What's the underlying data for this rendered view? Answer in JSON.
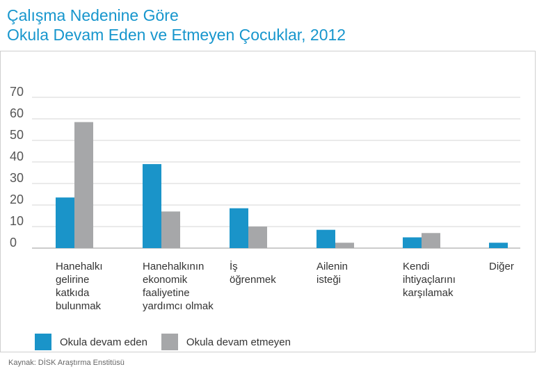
{
  "chart_data": {
    "type": "bar",
    "title": "Çalışma Nedenine Göre",
    "subtitle": "Okula Devam Eden ve Etmeyen Çocuklar, 2012",
    "categories": [
      [
        "Hanehalkı",
        "gelirine",
        "katkıda",
        "bulunmak"
      ],
      [
        "Hanehalkının",
        "ekonomik",
        "faaliyetine",
        "yardımcı olmak"
      ],
      [
        "İş",
        "öğrenmek"
      ],
      [
        "Ailenin",
        "isteği"
      ],
      [
        "Kendi",
        "ihtiyaçlarını",
        "karşılamak"
      ],
      [
        "Diğer"
      ]
    ],
    "series": [
      {
        "name": "Okula devam eden",
        "color": "#1a94c9",
        "values": [
          23.5,
          39,
          18.5,
          8.5,
          5,
          2.5
        ]
      },
      {
        "name": "Okula devam etmeyen",
        "color": "#a6a7a9",
        "values": [
          58.5,
          17,
          10,
          2.5,
          7,
          null
        ]
      }
    ],
    "ylim": [
      0,
      70
    ],
    "yticks": [
      0,
      10,
      20,
      30,
      40,
      50,
      60,
      70
    ],
    "grid": true,
    "legend_position": "bottom-left",
    "source": "Kaynak: DİSK Araştırma Enstitüsü"
  }
}
